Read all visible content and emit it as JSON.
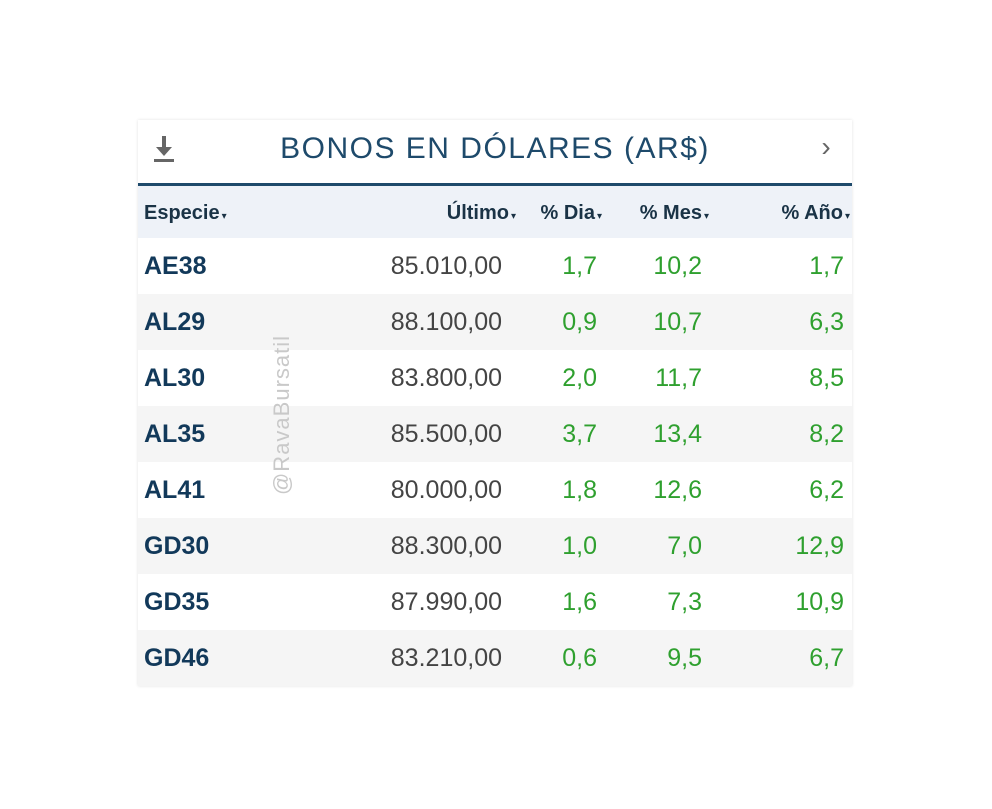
{
  "widget": {
    "title": "BONOS EN DÓLARES (AR$)",
    "download_icon": "download-icon",
    "next_icon": "chevron-right-icon",
    "next_glyph": "›",
    "accent_color": "#1e4a6b",
    "positive_color": "#2fa02f"
  },
  "table": {
    "columns": [
      {
        "label": "Especie",
        "caret": "▾"
      },
      {
        "label": "Último",
        "caret": "▾"
      },
      {
        "label": "% Dia",
        "caret": "▾"
      },
      {
        "label": "% Mes",
        "caret": "▾"
      },
      {
        "label": "% Año",
        "caret": "▾"
      }
    ],
    "rows": [
      {
        "especie": "AE38",
        "ultimo": "85.010,00",
        "dia": "1,7",
        "mes": "10,2",
        "ano": "1,7"
      },
      {
        "especie": "AL29",
        "ultimo": "88.100,00",
        "dia": "0,9",
        "mes": "10,7",
        "ano": "6,3"
      },
      {
        "especie": "AL30",
        "ultimo": "83.800,00",
        "dia": "2,0",
        "mes": "11,7",
        "ano": "8,5"
      },
      {
        "especie": "AL35",
        "ultimo": "85.500,00",
        "dia": "3,7",
        "mes": "13,4",
        "ano": "8,2"
      },
      {
        "especie": "AL41",
        "ultimo": "80.000,00",
        "dia": "1,8",
        "mes": "12,6",
        "ano": "6,2"
      },
      {
        "especie": "GD30",
        "ultimo": "88.300,00",
        "dia": "1,0",
        "mes": "7,0",
        "ano": "12,9"
      },
      {
        "especie": "GD35",
        "ultimo": "87.990,00",
        "dia": "1,6",
        "mes": "7,3",
        "ano": "10,9"
      },
      {
        "especie": "GD46",
        "ultimo": "83.210,00",
        "dia": "0,6",
        "mes": "9,5",
        "ano": "6,7"
      }
    ]
  },
  "watermark": "@RavaBursatil"
}
